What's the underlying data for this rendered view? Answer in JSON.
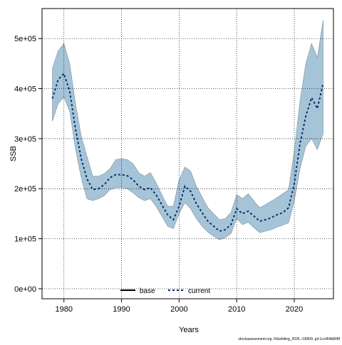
{
  "chart_data": {
    "type": "line",
    "title": "",
    "xlabel": "Years",
    "ylabel": "SSB",
    "xlim": [
      1976.2,
      2026.8
    ],
    "ylim": [
      -20000,
      560000
    ],
    "x_ticks": [
      1980,
      1990,
      2000,
      2010,
      2020
    ],
    "x_tick_labels": [
      "1980",
      "1990",
      "2000",
      "2010",
      "2020"
    ],
    "y_ticks": [
      0,
      100000,
      200000,
      300000,
      400000,
      500000
    ],
    "y_tick_labels": [
      "0e+00",
      "1e+05",
      "2e+05",
      "3e+05",
      "4e+05",
      "5e+05"
    ],
    "grid": true,
    "legend_placement": "bottom-center",
    "series": [
      {
        "name": "base",
        "style": "solid",
        "color": "#000000",
        "x": [],
        "values": []
      },
      {
        "name": "current",
        "style": "dashed",
        "color": "#08306b",
        "x": [
          1978,
          1979,
          1980,
          1981,
          1982,
          1983,
          1984,
          1985,
          1986,
          1987,
          1988,
          1989,
          1990,
          1991,
          1992,
          1993,
          1994,
          1995,
          1996,
          1997,
          1998,
          1999,
          2000,
          2001,
          2002,
          2003,
          2004,
          2005,
          2006,
          2007,
          2008,
          2009,
          2010,
          2011,
          2012,
          2013,
          2014,
          2015,
          2016,
          2017,
          2018,
          2019,
          2020,
          2021,
          2022,
          2023,
          2024,
          2025
        ],
        "values": [
          380000,
          418000,
          430000,
          395000,
          320000,
          260000,
          220000,
          198000,
          200000,
          208000,
          222000,
          228000,
          228000,
          226000,
          218000,
          205000,
          198000,
          202000,
          188000,
          168000,
          148000,
          138000,
          165000,
          205000,
          195000,
          170000,
          152000,
          135000,
          125000,
          115000,
          118000,
          128000,
          160000,
          150000,
          155000,
          145000,
          135000,
          138000,
          142000,
          148000,
          152000,
          162000,
          210000,
          290000,
          345000,
          382000,
          360000,
          410000
        ]
      }
    ],
    "bands": [
      {
        "series": "current",
        "color": "#a6c4d8",
        "x": [
          1978,
          1979,
          1980,
          1981,
          1982,
          1983,
          1984,
          1985,
          1986,
          1987,
          1988,
          1989,
          1990,
          1991,
          1992,
          1993,
          1994,
          1995,
          1996,
          1997,
          1998,
          1999,
          2000,
          2001,
          2002,
          2003,
          2004,
          2005,
          2006,
          2007,
          2008,
          2009,
          2010,
          2011,
          2012,
          2013,
          2014,
          2015,
          2016,
          2017,
          2018,
          2019,
          2020,
          2021,
          2022,
          2023,
          2024,
          2025
        ],
        "lower": [
          335000,
          370000,
          383000,
          355000,
          280000,
          222000,
          180000,
          176000,
          180000,
          186000,
          198000,
          202000,
          202000,
          200000,
          192000,
          182000,
          176000,
          180000,
          165000,
          145000,
          125000,
          120000,
          150000,
          172000,
          160000,
          140000,
          125000,
          113000,
          105000,
          98000,
          102000,
          110000,
          140000,
          128000,
          133000,
          122000,
          112000,
          115000,
          118000,
          123000,
          127000,
          132000,
          175000,
          240000,
          285000,
          300000,
          278000,
          310000
        ],
        "upper": [
          440000,
          475000,
          490000,
          450000,
          370000,
          305000,
          265000,
          225000,
          225000,
          230000,
          240000,
          258000,
          260000,
          258000,
          250000,
          232000,
          225000,
          232000,
          212000,
          188000,
          165000,
          165000,
          218000,
          243000,
          235000,
          205000,
          183000,
          162000,
          150000,
          138000,
          140000,
          152000,
          188000,
          180000,
          190000,
          175000,
          162000,
          168000,
          175000,
          182000,
          190000,
          198000,
          275000,
          375000,
          450000,
          490000,
          462000,
          537000
        ]
      }
    ]
  },
  "legend": {
    "items": [
      "base",
      "current"
    ]
  },
  "footer": {
    "text": "stockassessment.org, NSwhiting_2025, r18909, git:1cc464b808f"
  }
}
